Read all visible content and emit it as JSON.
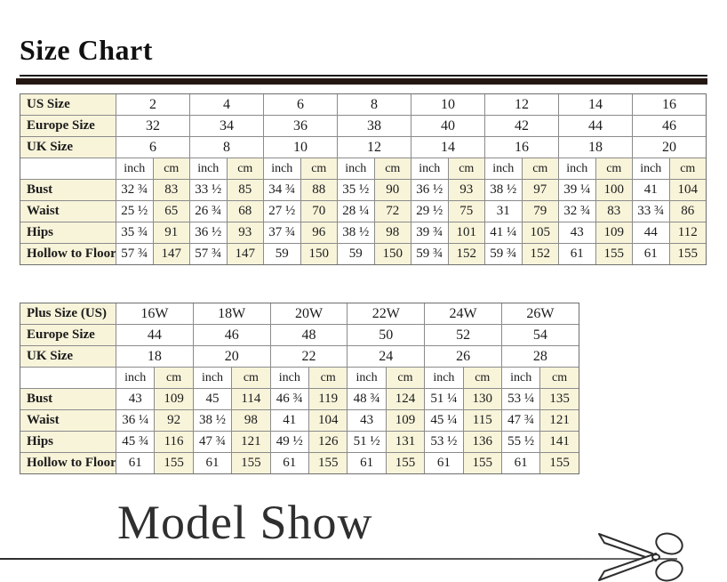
{
  "titles": {
    "size_chart": "Size Chart",
    "model_show": "Model Show"
  },
  "colors": {
    "cream_cell": "#f8f4da",
    "grid_border": "#8b8b8b",
    "thick_rule": "#241712",
    "text": "#1b1b1b"
  },
  "icons": {
    "scissors": "scissors-icon"
  },
  "table1": {
    "size_rows": [
      {
        "label": "US Size",
        "values": [
          "2",
          "4",
          "6",
          "8",
          "10",
          "12",
          "14",
          "16"
        ]
      },
      {
        "label": "Europe Size",
        "values": [
          "32",
          "34",
          "36",
          "38",
          "40",
          "42",
          "44",
          "46"
        ]
      },
      {
        "label": "UK Size",
        "values": [
          "6",
          "8",
          "10",
          "12",
          "14",
          "16",
          "18",
          "20"
        ]
      }
    ],
    "unit_headers": [
      "inch",
      "cm"
    ],
    "measure_rows": [
      {
        "label": "Bust",
        "values": [
          "32 ¾",
          "83",
          "33 ½",
          "85",
          "34 ¾",
          "88",
          "35 ½",
          "90",
          "36 ½",
          "93",
          "38 ½",
          "97",
          "39 ¼",
          "100",
          "41",
          "104"
        ]
      },
      {
        "label": "Waist",
        "values": [
          "25 ½",
          "65",
          "26 ¾",
          "68",
          "27 ½",
          "70",
          "28 ¼",
          "72",
          "29 ½",
          "75",
          "31",
          "79",
          "32 ¾",
          "83",
          "33 ¾",
          "86"
        ]
      },
      {
        "label": "Hips",
        "values": [
          "35 ¾",
          "91",
          "36 ½",
          "93",
          "37 ¾",
          "96",
          "38 ½",
          "98",
          "39 ¾",
          "101",
          "41 ¼",
          "105",
          "43",
          "109",
          "44",
          "112"
        ]
      },
      {
        "label": "Hollow to Floor",
        "values": [
          "57 ¾",
          "147",
          "57 ¾",
          "147",
          "59",
          "150",
          "59",
          "150",
          "59 ¾",
          "152",
          "59 ¾",
          "152",
          "61",
          "155",
          "61",
          "155"
        ]
      }
    ]
  },
  "table2": {
    "size_rows": [
      {
        "label": "Plus Size (US)",
        "values": [
          "16W",
          "18W",
          "20W",
          "22W",
          "24W",
          "26W"
        ]
      },
      {
        "label": "Europe Size",
        "values": [
          "44",
          "46",
          "48",
          "50",
          "52",
          "54"
        ]
      },
      {
        "label": "UK Size",
        "values": [
          "18",
          "20",
          "22",
          "24",
          "26",
          "28"
        ]
      }
    ],
    "unit_headers": [
      "inch",
      "cm"
    ],
    "measure_rows": [
      {
        "label": "Bust",
        "values": [
          "43",
          "109",
          "45",
          "114",
          "46 ¾",
          "119",
          "48 ¾",
          "124",
          "51 ¼",
          "130",
          "53 ¼",
          "135"
        ]
      },
      {
        "label": "Waist",
        "values": [
          "36 ¼",
          "92",
          "38 ½",
          "98",
          "41",
          "104",
          "43",
          "109",
          "45 ¼",
          "115",
          "47 ¾",
          "121"
        ]
      },
      {
        "label": "Hips",
        "values": [
          "45 ¾",
          "116",
          "47 ¾",
          "121",
          "49 ½",
          "126",
          "51 ½",
          "131",
          "53 ½",
          "136",
          "55 ½",
          "141"
        ]
      },
      {
        "label": "Hollow to Floor",
        "values": [
          "61",
          "155",
          "61",
          "155",
          "61",
          "155",
          "61",
          "155",
          "61",
          "155",
          "61",
          "155"
        ]
      }
    ]
  }
}
